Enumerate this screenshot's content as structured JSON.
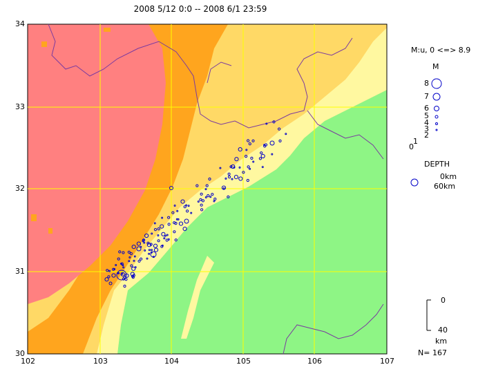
{
  "title": "2008 5/12 0:0 -- 2008 6/1 23:59",
  "y_ticks": [
    "34",
    "33",
    "32",
    "31",
    "30"
  ],
  "x_ticks": [
    "102",
    "103",
    "104",
    "105",
    "106",
    "107"
  ],
  "magnitude_legend": {
    "range_label": "M:u, 0 <=> 8.9",
    "header": "M",
    "levels": [
      "8",
      "7",
      "6",
      "5",
      "4",
      "3",
      "2",
      "1",
      "0"
    ]
  },
  "depth_legend": {
    "header": "DEPTH",
    "top_label": "0km",
    "bottom_label": "60km"
  },
  "scale_bar": {
    "top_label": "0",
    "bottom_label": "40",
    "unit": "km"
  },
  "count_label": "N= 167",
  "colors": {
    "plain_green": "#8ef585",
    "low_yellow": "#fff8a0",
    "mid_yellow": "#ffd966",
    "high_orange": "#ffa51e",
    "plateau_red": "#ff8080",
    "quake_circle": "#0000c8",
    "grid_line": "#ffff00",
    "border_line": "#7a3aa0"
  }
}
